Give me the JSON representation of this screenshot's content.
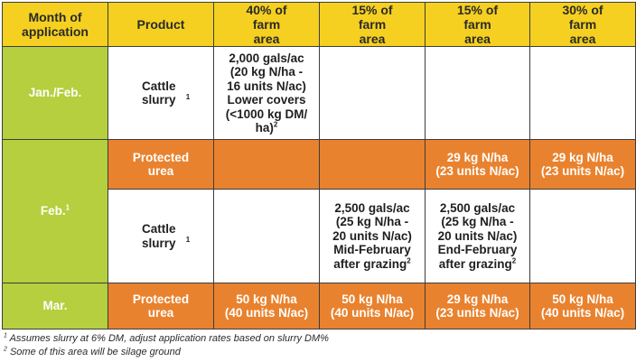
{
  "headers": {
    "month": "Month of application",
    "product": "Product",
    "col1": "40% of farm area",
    "col2": "15% of farm area",
    "col3": "15% of farm area",
    "col4": "30% of farm area"
  },
  "janfeb": {
    "month": "Jan./Feb.",
    "product": "Cattle slurry",
    "product_sup": "1",
    "col1_line1": "2,000 gals/ac",
    "col1_line2": "(20 kg N/ha -",
    "col1_line3": "16 units N/ac)",
    "col1_line4": "Lower covers",
    "col1_line5": "(<1000 kg DM/",
    "col1_line6": "ha)",
    "col1_sup": "2"
  },
  "feb": {
    "month": "Feb.",
    "month_sup": "1",
    "urea": {
      "product": "Protected urea",
      "col3_line1": "29 kg N/ha",
      "col3_line2": "(23 units N/ac)",
      "col4_line1": "29 kg N/ha",
      "col4_line2": "(23 units N/ac)"
    },
    "slurry": {
      "product": "Cattle slurry",
      "product_sup": "1",
      "col2_line1": "2,500 gals/ac",
      "col2_line2": "(25 kg N/ha -",
      "col2_line3": "20 units N/ac)",
      "col2_line4": "Mid-February",
      "col2_line5": "after grazing",
      "col2_sup": "2",
      "col3_line1": "2,500 gals/ac",
      "col3_line2": "(25 kg N/ha -",
      "col3_line3": "20 units N/ac)",
      "col3_line4": "End-February",
      "col3_line5": "after grazing",
      "col3_sup": "2"
    }
  },
  "mar": {
    "month": "Mar.",
    "product": "Protected urea",
    "col1_line1": "50 kg N/ha",
    "col1_line2": "(40 units N/ac)",
    "col2_line1": "50 kg N/ha",
    "col2_line2": "(40 units N/ac)",
    "col3_line1": "29 kg N/ha",
    "col3_line2": "(23 units N/ac)",
    "col4_line1": "50 kg N/ha",
    "col4_line2": "(40 units N/ac)"
  },
  "footnotes": {
    "note1_mark": "1",
    "note1": "Assumes slurry at 6% DM, adjust application rates based on slurry DM%",
    "note2_mark": "2",
    "note2": "Some of this area will be silage ground"
  },
  "colors": {
    "header": "#f5d020",
    "month": "#b5cf3e",
    "orange": "#e9822e",
    "border": "#3d3d3d"
  }
}
